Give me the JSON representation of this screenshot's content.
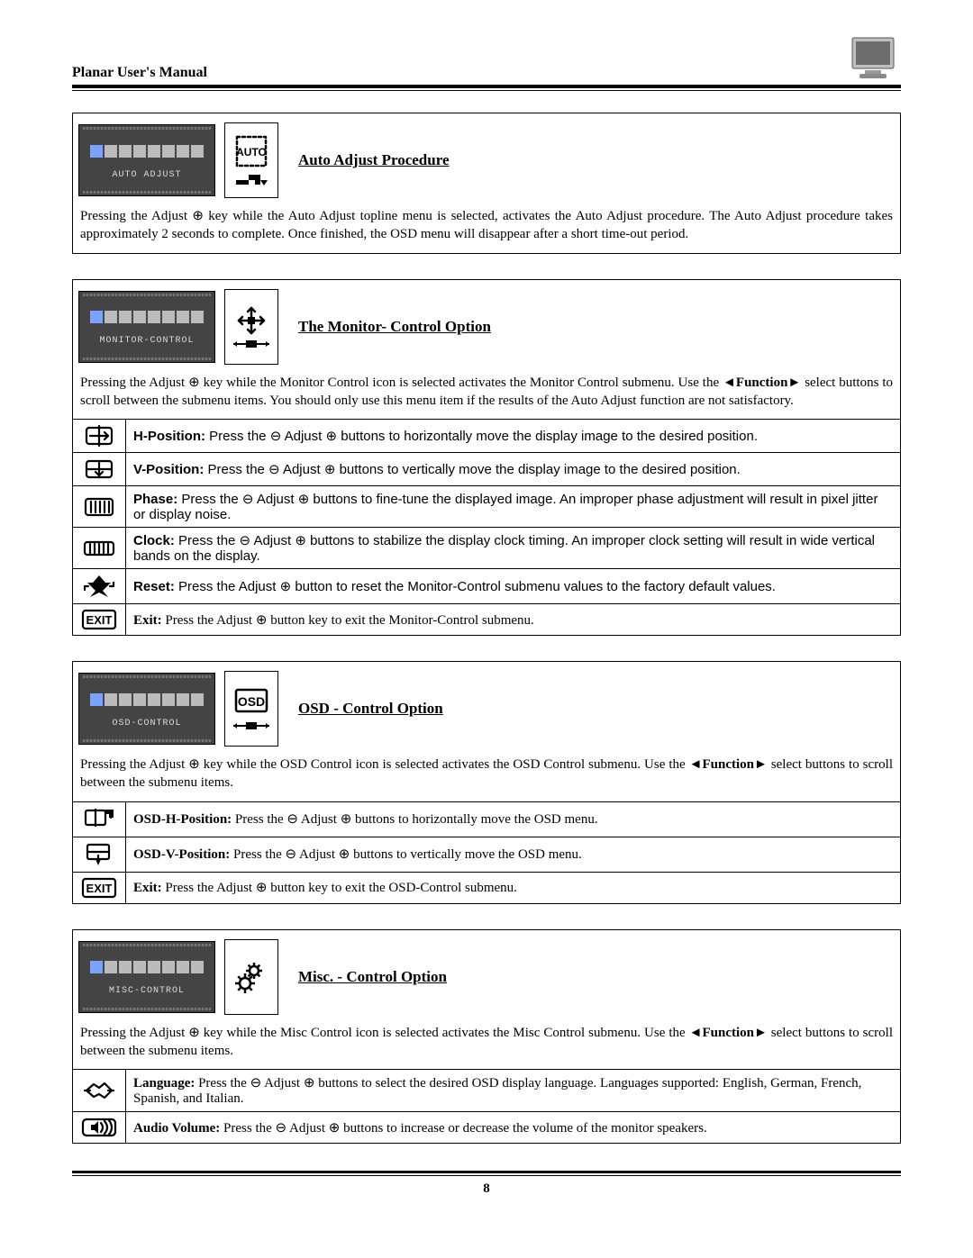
{
  "page": {
    "manual_title": "Planar User's Manual",
    "page_number": "8"
  },
  "symbols": {
    "minus": "⊖",
    "plus": "⊕",
    "left": "◄",
    "right": "►"
  },
  "sections": [
    {
      "osd_label": "AUTO ADJUST",
      "mini_icon": "auto",
      "title": "Auto Adjust Procedure",
      "intro_parts": [
        "Pressing the Adjust ",
        "⊕",
        " key while the Auto Adjust topline menu is selected, activates the Auto Adjust procedure.  The Auto Adjust procedure takes approximately 2 seconds to complete.  Once finished, the OSD menu will disappear after a short time-out period."
      ],
      "rows": []
    },
    {
      "osd_label": "MONITOR-CONTROL",
      "mini_icon": "monitorctrl",
      "title": "The Monitor- Control Option",
      "intro_parts": [
        "Pressing the Adjust ",
        "⊕",
        " key while the Monitor Control icon is selected activates the Monitor Control submenu.  Use the  ",
        "◄",
        "Function",
        "►",
        "  select buttons to scroll between the submenu items.   You should only use this menu item if the results of the Auto Adjust function are not satisfactory."
      ],
      "rows": [
        {
          "icon": "hpos",
          "font": "arial",
          "label": "H-Position:",
          "text_parts": [
            " Press the ",
            "⊖",
            " Adjust ",
            "⊕",
            " buttons to horizontally move the display image to the desired position."
          ]
        },
        {
          "icon": "vpos",
          "font": "arial",
          "label": "V-Position:",
          "text_parts": [
            " Press the ",
            "⊖",
            " Adjust ",
            "⊕",
            " buttons to vertically move the display image to the desired position."
          ]
        },
        {
          "icon": "phase",
          "font": "arial",
          "label": "Phase:",
          "text_parts": [
            " Press the ",
            "⊖",
            " Adjust ",
            "⊕",
            " buttons to fine-tune the displayed image.  An improper phase adjustment will result in pixel jitter or display noise."
          ]
        },
        {
          "icon": "clock",
          "font": "arial",
          "label": "Clock:",
          "text_parts": [
            " Press the ",
            "⊖",
            " Adjust ",
            "⊕",
            " buttons to stabilize the display clock timing.  An improper clock setting will result in wide vertical bands on the display."
          ]
        },
        {
          "icon": "reset",
          "font": "arial",
          "label": "Reset:",
          "text_parts": [
            "  Press the Adjust ",
            "⊕",
            " button to reset the Monitor-Control submenu values to the factory default values."
          ]
        },
        {
          "icon": "exit",
          "font": "serif",
          "label": "Exit:",
          "text_parts": [
            " Press the Adjust ",
            "⊕",
            " button key to exit the Monitor-Control submenu."
          ]
        }
      ]
    },
    {
      "osd_label": "OSD-CONTROL",
      "mini_icon": "osd",
      "title": "OSD - Control Option",
      "intro_parts": [
        "Pressing the Adjust ",
        "⊕",
        " key while the OSD Control icon is selected activates the OSD Control submenu.  Use the  ",
        "◄",
        "Function",
        "►",
        "  select buttons to scroll between the submenu items."
      ],
      "rows": [
        {
          "icon": "osdh",
          "font": "serif",
          "label": "OSD-H-Position:",
          "text_parts": [
            " Press the ",
            "⊖",
            " Adjust ",
            "⊕",
            " buttons to horizontally move the OSD menu."
          ]
        },
        {
          "icon": "osdv",
          "font": "serif",
          "label": "OSD-V-Position:",
          "text_parts": [
            " Press the ",
            "⊖",
            " Adjust ",
            "⊕",
            " buttons to vertically move the OSD menu."
          ]
        },
        {
          "icon": "exit",
          "font": "serif",
          "label": "Exit:",
          "text_parts": [
            " Press the ",
            "⊕",
            " button key to exit the OSD-Control submenu."
          ],
          "prefix": " Press the Adjust "
        }
      ],
      "rows_fixed": [
        {
          "icon": "osdh",
          "font": "serif",
          "label": "OSD-H-Position:",
          "text_parts": [
            " Press the ",
            "⊖",
            " Adjust ",
            "⊕",
            " buttons to horizontally move the OSD menu."
          ]
        },
        {
          "icon": "osdv",
          "font": "serif",
          "label": "OSD-V-Position:",
          "text_parts": [
            " Press the ",
            "⊖",
            " Adjust ",
            "⊕",
            " buttons to vertically move the OSD menu."
          ]
        },
        {
          "icon": "exit",
          "font": "serif",
          "label": "Exit:",
          "text_parts": [
            " Press the Adjust ",
            "⊕",
            " button key to exit the OSD-Control submenu."
          ]
        }
      ]
    },
    {
      "osd_label": "MISC-CONTROL",
      "mini_icon": "misc",
      "title": "Misc. - Control Option",
      "intro_parts": [
        "Pressing the Adjust ",
        "⊕",
        " key while the Misc Control icon is selected activates the Misc Control submenu.  Use the  ",
        "◄",
        "Function",
        "►",
        "  select buttons to scroll between the submenu items."
      ],
      "rows": [
        {
          "icon": "lang",
          "font": "serif",
          "label": "Language:",
          "text_parts": [
            " Press the ",
            "⊖",
            " Adjust ",
            "⊕",
            " buttons to select the desired OSD display language.  Languages supported:  English, German, French, Spanish, and Italian."
          ]
        },
        {
          "icon": "audio",
          "font": "serif",
          "label": "Audio Volume:",
          "text_parts": [
            " Press the ",
            "⊖",
            " Adjust ",
            "⊕",
            " buttons to increase or decrease the volume of the monitor speakers."
          ]
        }
      ]
    }
  ]
}
